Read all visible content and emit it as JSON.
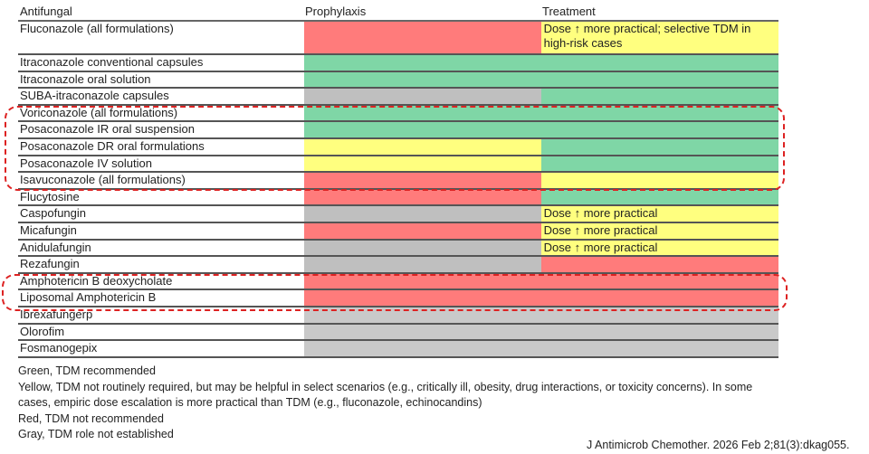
{
  "colors": {
    "green": "#7fd6a6",
    "yellow": "#ffff7f",
    "red": "#ff7b7b",
    "gray": "#bfbfbf",
    "lightgray": "#c9c9c9"
  },
  "headers": {
    "antifungal": "Antifungal",
    "prophylaxis": "Prophylaxis",
    "treatment": "Treatment"
  },
  "rows": [
    {
      "name": "Fluconazole (all formulations)",
      "prophylaxis": "red",
      "treatment": "yellow",
      "treatment_text": "Dose ↑ more practical; selective TDM in high-risk cases",
      "tall": true
    },
    {
      "name": "Itraconazole conventional capsules",
      "span": "green"
    },
    {
      "name": "Itraconazole oral solution",
      "span": "green"
    },
    {
      "name": "SUBA-itraconazole capsules",
      "prophylaxis": "gray",
      "treatment": "green"
    },
    {
      "name": "Voriconazole (all formulations)",
      "span": "green"
    },
    {
      "name": "Posaconazole IR oral suspension",
      "span": "green"
    },
    {
      "name": "Posaconazole DR oral formulations",
      "prophylaxis": "yellow",
      "treatment": "green"
    },
    {
      "name": "Posaconazole IV solution",
      "prophylaxis": "yellow",
      "treatment": "green"
    },
    {
      "name": "Isavuconazole (all formulations)",
      "prophylaxis": "red",
      "treatment": "yellow"
    },
    {
      "name": "Flucytosine",
      "prophylaxis": "red",
      "treatment": "green"
    },
    {
      "name": "Caspofungin",
      "prophylaxis": "gray",
      "treatment": "yellow",
      "treatment_text": "Dose ↑ more practical"
    },
    {
      "name": "Micafungin",
      "prophylaxis": "red",
      "treatment": "yellow",
      "treatment_text": "Dose ↑ more practical"
    },
    {
      "name": "Anidulafungin",
      "prophylaxis": "gray",
      "treatment": "yellow",
      "treatment_text": "Dose ↑ more practical"
    },
    {
      "name": "Rezafungin",
      "prophylaxis": "gray",
      "treatment": "red"
    },
    {
      "name": "Amphotericin B deoxycholate",
      "span": "red"
    },
    {
      "name": "Liposomal Amphotericin B",
      "span": "red"
    },
    {
      "name": "Ibrexafungerp",
      "span": "lightgray"
    },
    {
      "name": "Olorofim",
      "span": "lightgray"
    },
    {
      "name": "Fosmanogepix",
      "span": "lightgray"
    }
  ],
  "legend": [
    "Green, TDM recommended",
    "Yellow, TDM not routinely required, but may be helpful in select scenarios (e.g., critically ill, obesity, drug interactions, or toxicity concerns). In some cases, empiric dose escalation is more practical than TDM (e.g., fluconazole, echinocandins)",
    "Red, TDM not recommended",
    "Gray, TDM role not established"
  ],
  "citation": "J Antimicrob Chemother. 2026 Feb 2;81(3):dkag055."
}
